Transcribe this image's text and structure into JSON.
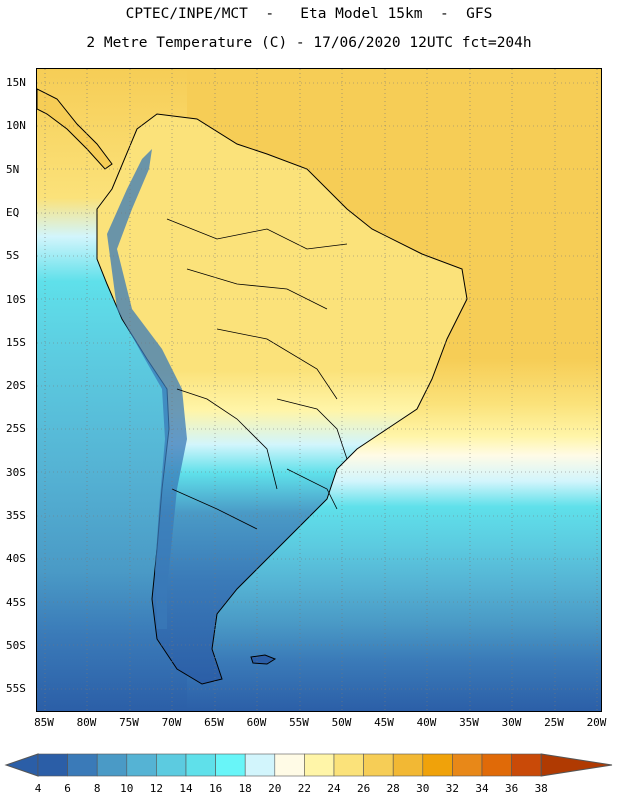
{
  "header": {
    "line1": "CPTEC/INPE/MCT  -   Eta Model 15km  -  GFS",
    "line2": "2 Metre Temperature (C) - 17/06/2020 12UTC fct=204h"
  },
  "map": {
    "lat_labels": [
      "15N",
      "10N",
      "5N",
      "EQ",
      "5S",
      "10S",
      "15S",
      "20S",
      "25S",
      "30S",
      "35S",
      "40S",
      "45S",
      "50S",
      "55S"
    ],
    "lon_labels": [
      "85W",
      "80W",
      "75W",
      "70W",
      "65W",
      "60W",
      "55W",
      "50W",
      "45W",
      "40W",
      "35W",
      "30W",
      "25W",
      "20W"
    ]
  },
  "colorbar": {
    "ticks": [
      "4",
      "6",
      "8",
      "10",
      "12",
      "14",
      "16",
      "18",
      "20",
      "22",
      "24",
      "26",
      "28",
      "30",
      "32",
      "34",
      "36",
      "38"
    ],
    "colors": [
      "#2b5ea7",
      "#3a7ab8",
      "#4a9ac6",
      "#55b3d4",
      "#5ccbe0",
      "#5fe0ea",
      "#68f5f8",
      "#d2f5fc",
      "#fffbe6",
      "#fff5a8",
      "#fbe27a",
      "#f6cd56",
      "#f2b834",
      "#f0a20a",
      "#e88818",
      "#e06a08",
      "#c94a08",
      "#b03a02"
    ]
  }
}
